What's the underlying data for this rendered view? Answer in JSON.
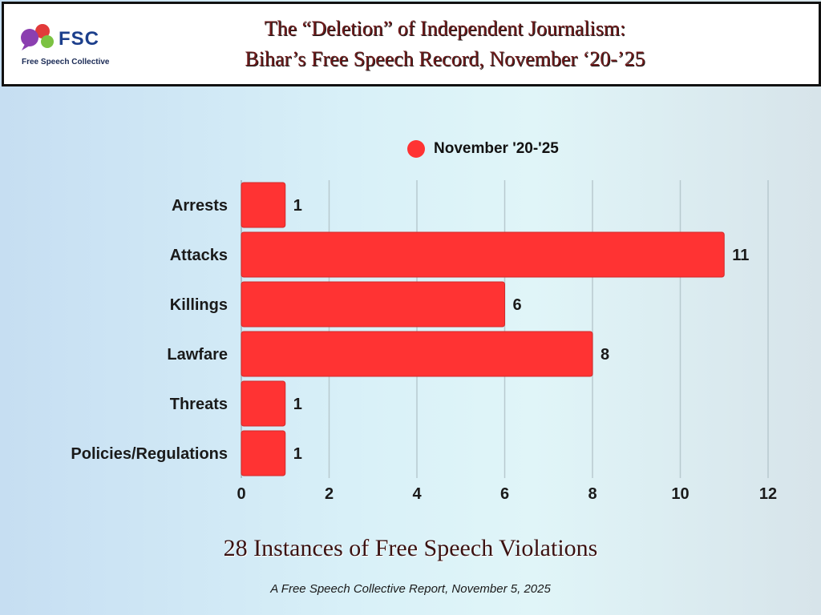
{
  "header": {
    "title_line1": "The “Deletion” of Independent Journalism:",
    "title_line2": "Bihar’s Free Speech Record, November ‘20-’25"
  },
  "logo": {
    "abbr": "FSC",
    "name": "Free Speech Collective",
    "colors": {
      "red": "#e23a3a",
      "purple": "#8b3fb0",
      "green": "#7cc242",
      "text": "#1c3f8c"
    }
  },
  "colors": {
    "bar": "#ff3333",
    "grid": "#b8c9cf",
    "title": "#6e1a1a"
  },
  "chart_data": {
    "type": "bar",
    "orientation": "horizontal",
    "categories": [
      "Arrests",
      "Attacks",
      "Killings",
      "Lawfare",
      "Threats",
      "Policies/Regulations"
    ],
    "series": [
      {
        "name": "November '20-'25",
        "values": [
          1,
          11,
          6,
          8,
          1,
          1
        ],
        "color": "#ff3333"
      }
    ],
    "xlim": [
      0,
      12
    ],
    "xticks": [
      0,
      2,
      4,
      6,
      8,
      10,
      12
    ],
    "grid": true,
    "legend": "top"
  },
  "footer": {
    "caption": "28 Instances of Free Speech Violations",
    "subcaption": "A Free Speech Collective Report, November 5, 2025"
  }
}
